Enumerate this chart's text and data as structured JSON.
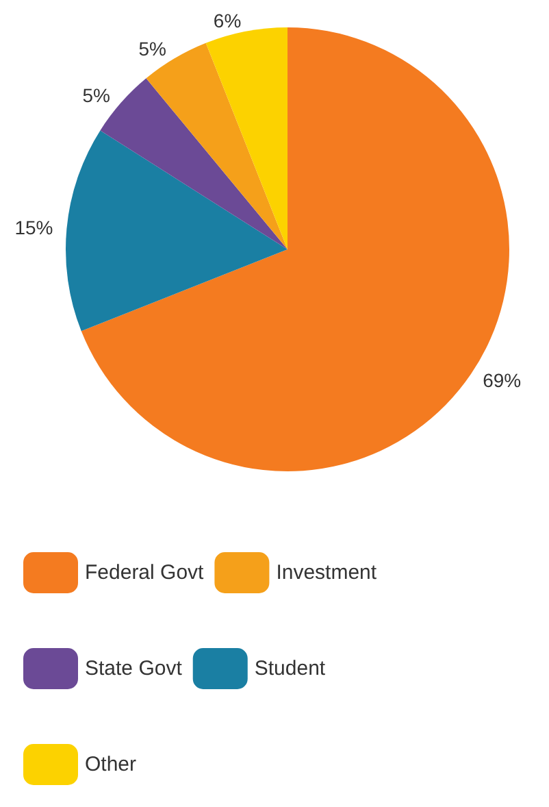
{
  "chart_data": {
    "type": "pie",
    "categories": [
      "Federal Govt",
      "Student",
      "State Govt",
      "Investment",
      "Other"
    ],
    "values": [
      69,
      15,
      5,
      5,
      6
    ],
    "colors": [
      "#f47b20",
      "#1a7fa3",
      "#6b4a96",
      "#f5a01a",
      "#fcd200"
    ],
    "value_labels": [
      "69%",
      "15%",
      "5%",
      "5%",
      "6%"
    ],
    "legend": "bottom"
  }
}
